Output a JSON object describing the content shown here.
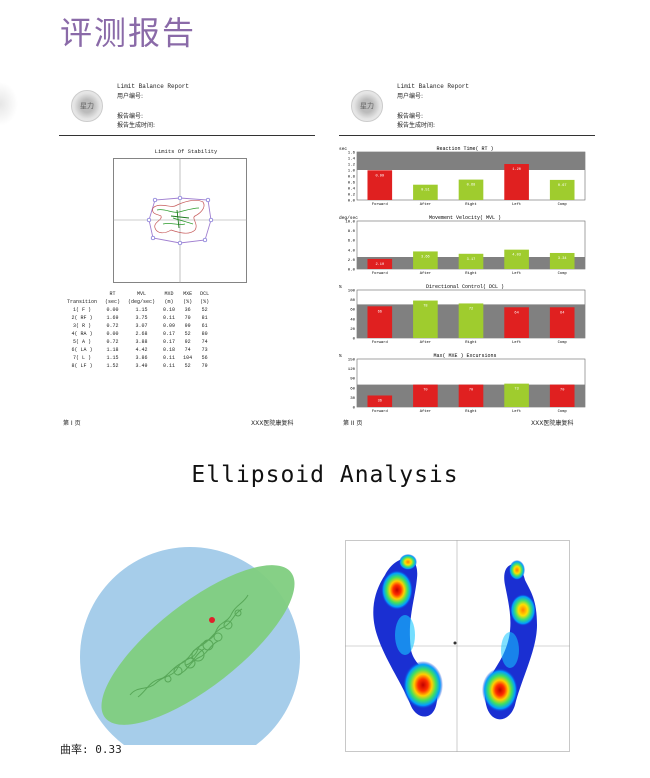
{
  "page_title": "评测报告",
  "report_left": {
    "header_title": "Limit Balance Report",
    "user_id_label": "用户编号:",
    "report_no_label": "报告编号:",
    "generated_label": "报告生成时间:",
    "logo_text": "星力",
    "chart_title": "Limits Of Stability",
    "table": {
      "headers": [
        "Transition",
        "RT\n(sec)",
        "MVL\n(deg/sec)",
        "MXD\n(m)",
        "MXE\n(%)",
        "DCL\n(%)"
      ],
      "header_top": [
        "",
        "RT",
        "MVL",
        "MXD",
        "MXE",
        "DCL"
      ],
      "header_bottom": [
        "Transition",
        "(sec)",
        "(deg/sec)",
        "(m)",
        "(%)",
        "(%)"
      ],
      "rows": [
        [
          "1( F )",
          "0.00",
          "1.15",
          "0.10",
          "36",
          "52"
        ],
        [
          "2( RF )",
          "1.69",
          "3.75",
          "0.11",
          "70",
          "81"
        ],
        [
          "3( R )",
          "0.72",
          "3.07",
          "0.09",
          "99",
          "61"
        ],
        [
          "4( RA )",
          "0.00",
          "2.68",
          "0.17",
          "52",
          "80"
        ],
        [
          "5( A )",
          "0.72",
          "3.88",
          "0.17",
          "92",
          "74"
        ],
        [
          "6( LA )",
          "1.18",
          "4.42",
          "0.18",
          "74",
          "73"
        ],
        [
          "7( L )",
          "1.15",
          "3.86",
          "0.11",
          "104",
          "56"
        ],
        [
          "8( LF )",
          "1.52",
          "3.49",
          "0.11",
          "52",
          "79"
        ]
      ]
    },
    "footer_page": "第 I 页",
    "footer_org": "XXX医院康复科"
  },
  "report_right": {
    "header_title": "Limit Balance Report",
    "user_id_label": "用户编号:",
    "report_no_label": "报告编号:",
    "generated_label": "报告生成时间:",
    "logo_text": "星力",
    "footer_page": "第 II 页",
    "footer_org": "XXX医院康复科"
  },
  "chart_data": [
    {
      "type": "bar",
      "title": "Reaction Time( RT )",
      "ylabel": "sec",
      "ylim": [
        0,
        1.6
      ],
      "yticks": [
        "0.0",
        "0.2",
        "0.4",
        "0.6",
        "0.8",
        "1.0",
        "1.2",
        "1.4",
        "1.6"
      ],
      "band": [
        1.0,
        1.6
      ],
      "categories": [
        "Forward",
        "After",
        "Right",
        "Left",
        "Comp"
      ],
      "values": [
        0.99,
        0.51,
        0.68,
        1.2,
        0.67
      ],
      "labels": [
        "0.99",
        "0.51",
        "0.68",
        "1.20",
        "0.67"
      ],
      "colors": [
        "#e02020",
        "#9fcc2e",
        "#9fcc2e",
        "#e02020",
        "#9fcc2e"
      ]
    },
    {
      "type": "bar",
      "title": "Movement Velocity( MVL )",
      "ylabel": "deg/sec",
      "ylim": [
        0,
        10
      ],
      "yticks": [
        "0.0",
        "2.0",
        "4.0",
        "6.0",
        "8.0",
        "10.0"
      ],
      "band": [
        0,
        2.5
      ],
      "categories": [
        "Forward",
        "After",
        "Right",
        "Left",
        "Comp"
      ],
      "values": [
        2.1,
        3.66,
        3.17,
        4.03,
        3.34
      ],
      "labels": [
        "2.10",
        "3.66",
        "3.17",
        "4.03",
        "3.34"
      ],
      "colors": [
        "#e02020",
        "#9fcc2e",
        "#9fcc2e",
        "#9fcc2e",
        "#9fcc2e"
      ]
    },
    {
      "type": "bar",
      "title": "Directional Control( DCL )",
      "ylabel": "%",
      "ylim": [
        0,
        100
      ],
      "yticks": [
        "0",
        "20",
        "40",
        "60",
        "80",
        "100"
      ],
      "band": [
        0,
        70
      ],
      "categories": [
        "Forward",
        "After",
        "Right",
        "Left",
        "Comp"
      ],
      "values": [
        66,
        78,
        72,
        64,
        64
      ],
      "labels": [
        "66",
        "78",
        "72",
        "64",
        "64"
      ],
      "colors": [
        "#e02020",
        "#9fcc2e",
        "#9fcc2e",
        "#e02020",
        "#e02020"
      ]
    },
    {
      "type": "bar",
      "title": "Max( MXE ) Excursions",
      "ylabel": "%",
      "ylim": [
        0,
        150
      ],
      "yticks": [
        "0",
        "30",
        "60",
        "90",
        "120",
        "150"
      ],
      "band": [
        0,
        70
      ],
      "categories": [
        "Forward",
        "After",
        "Right",
        "Left",
        "Comp"
      ],
      "values": [
        36,
        70,
        70,
        73,
        70
      ],
      "labels": [
        "36",
        "70",
        "70",
        "73",
        "70"
      ],
      "colors": [
        "#e02020",
        "#e02020",
        "#e02020",
        "#9fcc2e",
        "#e02020"
      ]
    }
  ],
  "ellipsoid": {
    "title": "Ellipsoid Analysis",
    "curvature_text": "曲率: 0.33"
  },
  "colors": {
    "title_purple": "#8a6aa8",
    "bar_red": "#e02020",
    "bar_green": "#9fcc2e",
    "band_gray": "#808080",
    "circle_blue": "#a6cdea",
    "ellipse_green": "#7fcd7f"
  }
}
